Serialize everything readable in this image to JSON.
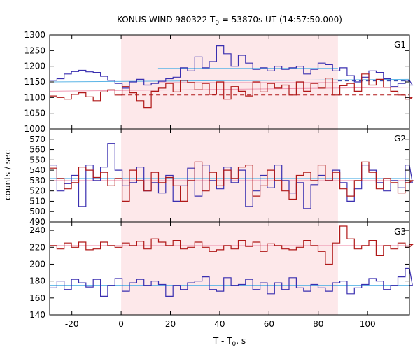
{
  "chart_data": {
    "type": "line",
    "title": {
      "prefix": "KONUS-WIND 980322 T",
      "sub": "0",
      "suffix": " = 53870s UT (14:57:50.000)"
    },
    "xlabel": {
      "prefix": "T - T",
      "sub": "0",
      "suffix": ", s"
    },
    "ylabel": "counts / sec",
    "xlim": [
      -29,
      117
    ],
    "xticks": [
      -20,
      0,
      20,
      40,
      60,
      80,
      100
    ],
    "highlight_interval": [
      0,
      88
    ],
    "colors": {
      "highlight": "#fde8ea",
      "red_series": "#b01818",
      "blue_series": "#3a2fb0",
      "blue_fit": "#5ab4e6",
      "red_fit": "#f09ab4",
      "red_dashed": "#b01818",
      "blue_dashed": "#2038a8"
    },
    "panels": [
      {
        "label": "G1",
        "ylim": [
          1000,
          1300
        ],
        "yticks": [
          1000,
          1050,
          1100,
          1150,
          1200,
          1250,
          1300
        ],
        "blue_fit": {
          "x": [
            -29,
            117
          ],
          "y": [
            1150,
            1158
          ]
        },
        "red_fit": {
          "x": [
            -29,
            117
          ],
          "y": [
            1120,
            1133
          ]
        },
        "blue_level": {
          "x": [
            15,
            88
          ],
          "y": 1193
        },
        "red_level": {
          "x": [
            15,
            88
          ],
          "y": 1148
        },
        "blue_dashed": {
          "x": [
            88,
            117
          ],
          "y": 1153
        },
        "red_dashed": {
          "x": [
            0,
            117
          ],
          "y": 1108
        },
        "series": [
          {
            "name": "blue",
            "x0": -29,
            "dx": 2.944,
            "values": [
              1155,
              1160,
              1175,
              1183,
              1187,
              1182,
              1180,
              1168,
              1155,
              1145,
              1130,
              1150,
              1158,
              1140,
              1145,
              1152,
              1160,
              1165,
              1195,
              1185,
              1230,
              1195,
              1215,
              1265,
              1240,
              1200,
              1235,
              1210,
              1190,
              1195,
              1185,
              1200,
              1190,
              1195,
              1200,
              1175,
              1190,
              1210,
              1205,
              1185,
              1195,
              1170,
              1150,
              1165,
              1185,
              1180,
              1160,
              1135,
              1145,
              1155,
              1140
            ]
          },
          {
            "name": "red",
            "x0": -29,
            "dx": 2.944,
            "values": [
              1105,
              1100,
              1095,
              1110,
              1115,
              1102,
              1090,
              1118,
              1125,
              1108,
              1135,
              1115,
              1090,
              1068,
              1120,
              1130,
              1145,
              1118,
              1155,
              1148,
              1125,
              1145,
              1110,
              1150,
              1095,
              1135,
              1120,
              1105,
              1150,
              1118,
              1145,
              1130,
              1140,
              1108,
              1150,
              1120,
              1145,
              1130,
              1162,
              1108,
              1138,
              1145,
              1120,
              1175,
              1140,
              1158,
              1133,
              1120,
              1108,
              1095,
              1100
            ]
          }
        ]
      },
      {
        "label": "G2",
        "ylim": [
          490,
          580
        ],
        "yticks": [
          490,
          500,
          510,
          520,
          530,
          540,
          550,
          560,
          570
        ],
        "blue_fit": {
          "x": [
            -29,
            117
          ],
          "y": [
            532,
            532
          ]
        },
        "red_fit": {
          "x": [
            -29,
            117
          ],
          "y": [
            530,
            530
          ]
        },
        "series": [
          {
            "name": "blue",
            "x0": -29,
            "dx": 2.944,
            "values": [
              545,
              520,
              527,
              535,
              505,
              545,
              530,
              543,
              566,
              540,
              525,
              528,
              543,
              520,
              528,
              518,
              535,
              510,
              525,
              542,
              515,
              545,
              530,
              522,
              543,
              528,
              540,
              505,
              520,
              535,
              523,
              545,
              530,
              518,
              528,
              503,
              526,
              535,
              530,
              540,
              528,
              510,
              522,
              545,
              540,
              528,
              520,
              530,
              523,
              545,
              528
            ]
          },
          {
            "name": "red",
            "x0": -29,
            "dx": 2.944,
            "values": [
              542,
              532,
              522,
              528,
              543,
              540,
              533,
              538,
              525,
              532,
              510,
              540,
              530,
              520,
              538,
              528,
              533,
              525,
              510,
              530,
              548,
              520,
              538,
              525,
              540,
              532,
              543,
              545,
              515,
              525,
              540,
              530,
              520,
              512,
              535,
              538,
              530,
              545,
              530,
              538,
              522,
              515,
              530,
              548,
              538,
              522,
              532,
              528,
              518,
              528,
              530
            ]
          }
        ]
      },
      {
        "label": "G3",
        "ylim": [
          140,
          250
        ],
        "yticks": [
          140,
          160,
          180,
          200,
          220,
          240
        ],
        "blue_fit": {
          "x": [
            -29,
            117
          ],
          "y": [
            175,
            175
          ]
        },
        "red_fit": {
          "x": [
            -29,
            117
          ],
          "y": [
            222,
            222
          ]
        },
        "series": [
          {
            "name": "red",
            "x0": -29,
            "dx": 2.944,
            "values": [
              222,
              218,
              225,
              220,
              226,
              217,
              218,
              226,
              222,
              220,
              225,
              222,
              227,
              218,
              230,
              226,
              222,
              228,
              218,
              220,
              226,
              220,
              215,
              217,
              222,
              218,
              228,
              221,
              226,
              215,
              224,
              222,
              218,
              217,
              220,
              228,
              222,
              215,
              200,
              225,
              245,
              230,
              218,
              222,
              228,
              210,
              222,
              218,
              225,
              220,
              223
            ]
          },
          {
            "name": "blue",
            "x0": -29,
            "dx": 2.944,
            "values": [
              172,
              180,
              170,
              182,
              178,
              173,
              182,
              162,
              175,
              183,
              168,
              178,
              182,
              175,
              180,
              176,
              162,
              175,
              170,
              178,
              180,
              185,
              170,
              168,
              184,
              175,
              176,
              182,
              170,
              178,
              165,
              178,
              170,
              184,
              172,
              168,
              176,
              172,
              168,
              178,
              180,
              165,
              172,
              176,
              183,
              180,
              170,
              175,
              185,
              195,
              175
            ]
          }
        ]
      }
    ]
  }
}
